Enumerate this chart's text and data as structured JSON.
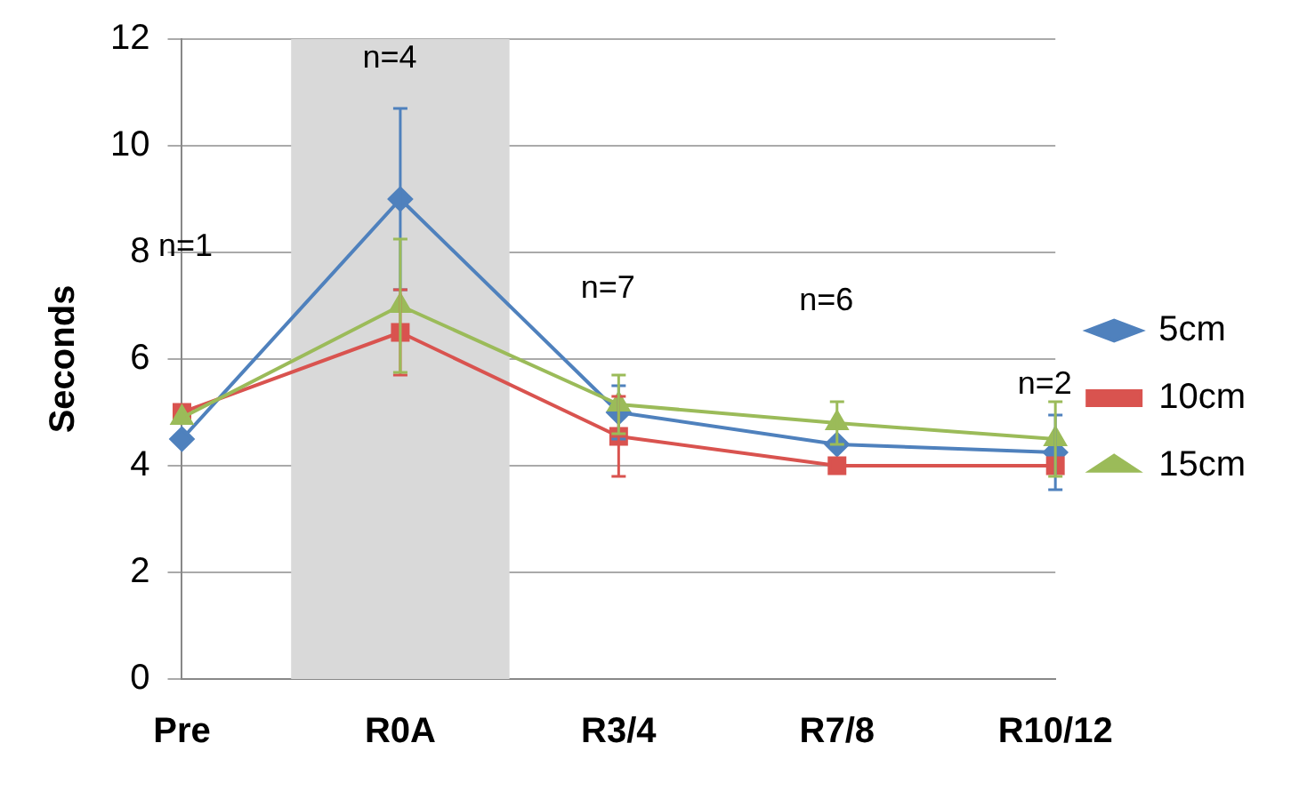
{
  "chart_data": {
    "type": "line",
    "ylabel": "Seconds",
    "categories": [
      "Pre",
      "R0A",
      "R3/4",
      "R7/8",
      "R10/12"
    ],
    "ylim": [
      0,
      12
    ],
    "yticks": [
      0,
      2,
      4,
      6,
      8,
      10,
      12
    ],
    "grid": "y",
    "legend": "right",
    "series": [
      {
        "name": "5cm",
        "color": "#4f81bd",
        "marker": "diamond",
        "values": [
          4.5,
          9.0,
          5.0,
          4.4,
          4.25
        ],
        "errors": [
          null,
          1.7,
          0.5,
          null,
          0.7
        ]
      },
      {
        "name": "10cm",
        "color": "#d9534f",
        "marker": "square",
        "values": [
          5.0,
          6.5,
          4.55,
          4.0,
          4.0
        ],
        "errors": [
          null,
          0.8,
          0.75,
          null,
          null
        ]
      },
      {
        "name": "15cm",
        "color": "#9bbb59",
        "marker": "triangle",
        "values": [
          4.9,
          7.0,
          5.15,
          4.8,
          4.5
        ],
        "errors": [
          null,
          1.25,
          0.55,
          0.4,
          0.7
        ]
      }
    ],
    "bands": [
      {
        "axis": "x",
        "from": "R0A",
        "to": "R0A",
        "color": "#d9d9d9"
      }
    ],
    "annotations": [
      "n=1",
      "n=4",
      "n=7",
      "n=6",
      "n=2"
    ]
  }
}
